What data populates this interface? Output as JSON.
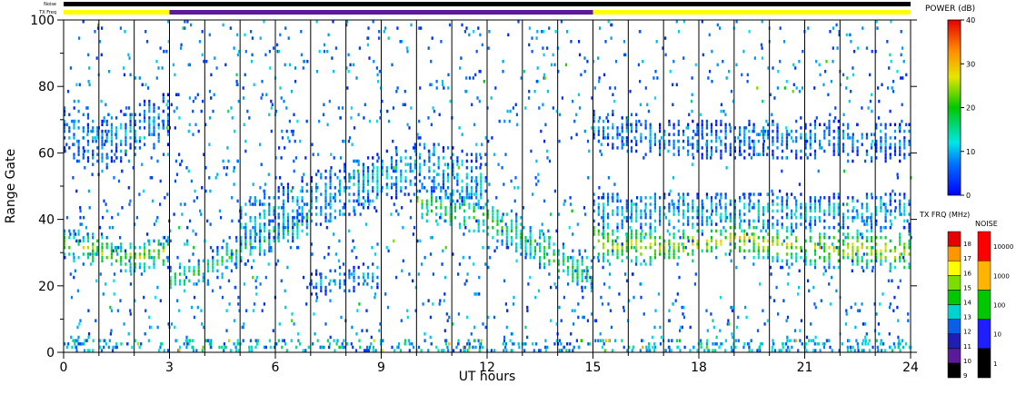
{
  "labels": {
    "noise_bar_label": "Noise",
    "txfreq_bar_label": "TX Freq",
    "power_label": "POWER (dB)",
    "txfrq_label": "TX FRQ (MHz)",
    "noise_label": "NOISE"
  },
  "colors": {
    "noise_bar": "#000000",
    "txfreq_yellow": "#ffff00",
    "txfreq_purple": "#5a1a9a"
  },
  "chart_data": {
    "type": "heatmap",
    "title": "",
    "xlabel": "UT hours",
    "ylabel": "Range Gate",
    "xlim": [
      0,
      24
    ],
    "ylim": [
      0,
      100
    ],
    "x_ticks": [
      0,
      3,
      6,
      9,
      12,
      15,
      18,
      21,
      24
    ],
    "y_ticks": [
      0,
      20,
      40,
      60,
      80,
      100
    ],
    "scan_boundaries_hours": [
      1,
      2,
      3,
      4,
      5,
      6,
      7,
      8,
      9,
      10,
      11,
      12,
      13,
      14,
      15,
      16,
      17,
      18,
      19,
      20,
      21,
      22,
      23
    ],
    "tx_freq_segments": [
      {
        "start": 0,
        "end": 3,
        "color": "yellow"
      },
      {
        "start": 3,
        "end": 15,
        "color": "purple"
      },
      {
        "start": 15,
        "end": 24,
        "color": "yellow"
      }
    ],
    "echo_bands": [
      {
        "x": [
          0,
          2,
          3
        ],
        "y": [
          32,
          28,
          30
        ],
        "width": 8,
        "power": 22
      },
      {
        "x": [
          3,
          4,
          5,
          6,
          7
        ],
        "y": [
          21,
          24,
          30,
          35,
          40
        ],
        "width": 8,
        "power": 16
      },
      {
        "x": [
          0,
          1,
          3
        ],
        "y": [
          66,
          62,
          70
        ],
        "width": 14,
        "power": 8
      },
      {
        "x": [
          5,
          7,
          9,
          10,
          12
        ],
        "y": [
          38,
          45,
          52,
          56,
          50
        ],
        "width": 14,
        "power": 10
      },
      {
        "x": [
          10,
          12,
          13,
          14,
          15
        ],
        "y": [
          45,
          40,
          34,
          27,
          22
        ],
        "width": 10,
        "power": 18
      },
      {
        "x": [
          7,
          9
        ],
        "y": [
          20,
          23
        ],
        "width": 6,
        "power": 9
      },
      {
        "x": [
          15,
          17,
          19,
          21,
          24
        ],
        "y": [
          33,
          31,
          34,
          31,
          30
        ],
        "width": 10,
        "power": 24
      },
      {
        "x": [
          15,
          24
        ],
        "y": [
          42,
          42
        ],
        "width": 10,
        "power": 10
      },
      {
        "x": [
          15,
          17,
          20,
          24
        ],
        "y": [
          68,
          63,
          64,
          62
        ],
        "width": 10,
        "power": 7
      }
    ],
    "power_scale": {
      "label": "POWER (dB)",
      "min": 0,
      "max": 40,
      "ticks": [
        0,
        10,
        20,
        30,
        40
      ]
    },
    "txfreq_scale": {
      "label": "TX FRQ (MHz)",
      "ticks": [
        9,
        10,
        11,
        12,
        13,
        14,
        15,
        16,
        17,
        18
      ]
    },
    "noise_scale": {
      "label": "NOISE",
      "ticks": [
        1,
        10,
        100,
        1000,
        10000
      ]
    }
  }
}
